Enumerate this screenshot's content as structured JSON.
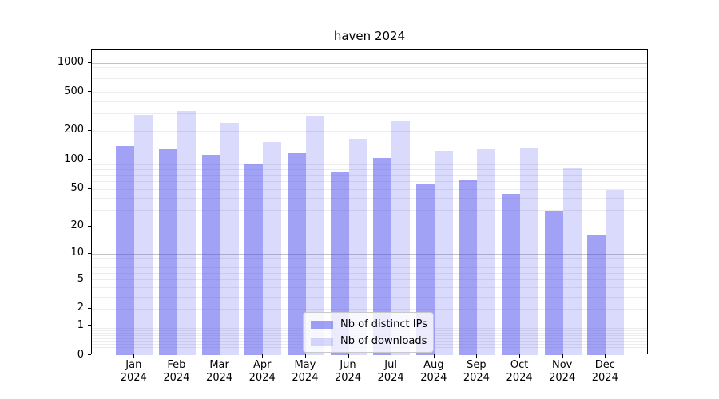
{
  "chart_data": {
    "type": "bar",
    "title": "haven 2024",
    "months": [
      "Jan",
      "Feb",
      "Mar",
      "Apr",
      "May",
      "Jun",
      "Jul",
      "Aug",
      "Sep",
      "Oct",
      "Nov",
      "Dec"
    ],
    "year": "2024",
    "series": [
      {
        "name": "Nb of distinct IPs",
        "color": "rgba(68,68,238,0.5)",
        "values": [
          138,
          128,
          112,
          91,
          118,
          74,
          104,
          56,
          63,
          44,
          29,
          16
        ]
      },
      {
        "name": "Nb of downloads",
        "color": "rgba(68,68,238,0.2)",
        "values": [
          289,
          323,
          239,
          154,
          283,
          164,
          248,
          123,
          128,
          133,
          81,
          49
        ]
      }
    ],
    "yticks": [
      1000,
      500,
      200,
      100,
      50,
      20,
      10,
      5,
      2,
      1,
      0
    ],
    "yscale": "log10(value+1)",
    "ylim": [
      0,
      1343
    ],
    "grid": "horizontal",
    "legend_position": "lower center",
    "colors": {
      "major_gridline": "#c3c3c3",
      "minor_gridline": "#ececec",
      "axis": "#000000",
      "background": "#ffffff"
    }
  }
}
